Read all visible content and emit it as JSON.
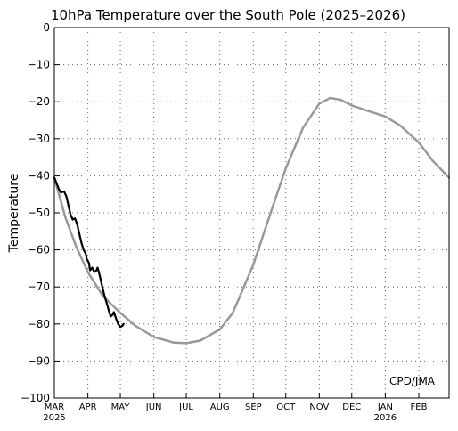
{
  "chart_data": {
    "type": "line",
    "title": "10hPa Temperature over the South Pole (2025–2026)",
    "ylabel": "Temperature",
    "xlabel": "",
    "ylim": [
      -100,
      0
    ],
    "yticks": [
      0,
      -10,
      -20,
      -30,
      -40,
      -50,
      -60,
      -70,
      -80,
      -90,
      -100
    ],
    "ytick_labels": [
      "0",
      "−10",
      "−20",
      "−30",
      "−40",
      "−50",
      "−60",
      "−70",
      "−80",
      "−90",
      "−100"
    ],
    "x_axis": {
      "unit": "days since start of axis",
      "range": [
        0,
        365
      ],
      "months": [
        {
          "label": "MAR",
          "year": "2025",
          "day": 0
        },
        {
          "label": "APR",
          "year": "",
          "day": 31
        },
        {
          "label": "MAY",
          "year": "",
          "day": 61
        },
        {
          "label": "JUN",
          "year": "",
          "day": 92
        },
        {
          "label": "JUL",
          "year": "",
          "day": 122
        },
        {
          "label": "AUG",
          "year": "",
          "day": 153
        },
        {
          "label": "SEP",
          "year": "",
          "day": 184
        },
        {
          "label": "OCT",
          "year": "",
          "day": 214
        },
        {
          "label": "NOV",
          "year": "",
          "day": 245
        },
        {
          "label": "DEC",
          "year": "",
          "day": 275
        },
        {
          "label": "JAN",
          "year": "2026",
          "day": 306
        },
        {
          "label": "FEB",
          "year": "",
          "day": 337
        }
      ]
    },
    "grid": true,
    "series": [
      {
        "color": "#999999",
        "points": [
          [
            0,
            -40.5
          ],
          [
            10,
            -51
          ],
          [
            20,
            -59
          ],
          [
            31,
            -66
          ],
          [
            45,
            -72.5
          ],
          [
            61,
            -77
          ],
          [
            75,
            -80.5
          ],
          [
            92,
            -83.5
          ],
          [
            110,
            -85
          ],
          [
            122,
            -85.2
          ],
          [
            135,
            -84.5
          ],
          [
            153,
            -81.5
          ],
          [
            165,
            -77
          ],
          [
            184,
            -64
          ],
          [
            200,
            -50
          ],
          [
            214,
            -38
          ],
          [
            230,
            -27
          ],
          [
            245,
            -20.5
          ],
          [
            255,
            -19
          ],
          [
            265,
            -19.5
          ],
          [
            275,
            -21
          ],
          [
            290,
            -22.5
          ],
          [
            306,
            -24
          ],
          [
            320,
            -26.5
          ],
          [
            337,
            -31
          ],
          [
            350,
            -36
          ],
          [
            365,
            -40.5
          ]
        ]
      },
      {
        "color": "#000000",
        "points": [
          [
            0,
            -40.5
          ],
          [
            2,
            -42
          ],
          [
            4,
            -43.5
          ],
          [
            6,
            -44.5
          ],
          [
            9,
            -44.2
          ],
          [
            11,
            -45.5
          ],
          [
            13,
            -48
          ],
          [
            15,
            -50.5
          ],
          [
            17,
            -51.8
          ],
          [
            19,
            -51.5
          ],
          [
            21,
            -53
          ],
          [
            23,
            -55.5
          ],
          [
            25,
            -58
          ],
          [
            27,
            -60
          ],
          [
            29,
            -61
          ],
          [
            30,
            -62.5
          ],
          [
            32,
            -63.5
          ],
          [
            33,
            -65.5
          ],
          [
            35,
            -64.8
          ],
          [
            37,
            -66
          ],
          [
            39,
            -65.5
          ],
          [
            40,
            -64.8
          ],
          [
            42,
            -67
          ],
          [
            44,
            -69.5
          ],
          [
            46,
            -72
          ],
          [
            48,
            -74
          ],
          [
            50,
            -76
          ],
          [
            52,
            -78
          ],
          [
            54,
            -77.5
          ],
          [
            55,
            -76.8
          ],
          [
            57,
            -78.5
          ],
          [
            59,
            -80
          ],
          [
            61,
            -80.8
          ],
          [
            63,
            -80.5
          ],
          [
            64,
            -80
          ]
        ]
      }
    ],
    "annotation": "CPD/JMA"
  }
}
